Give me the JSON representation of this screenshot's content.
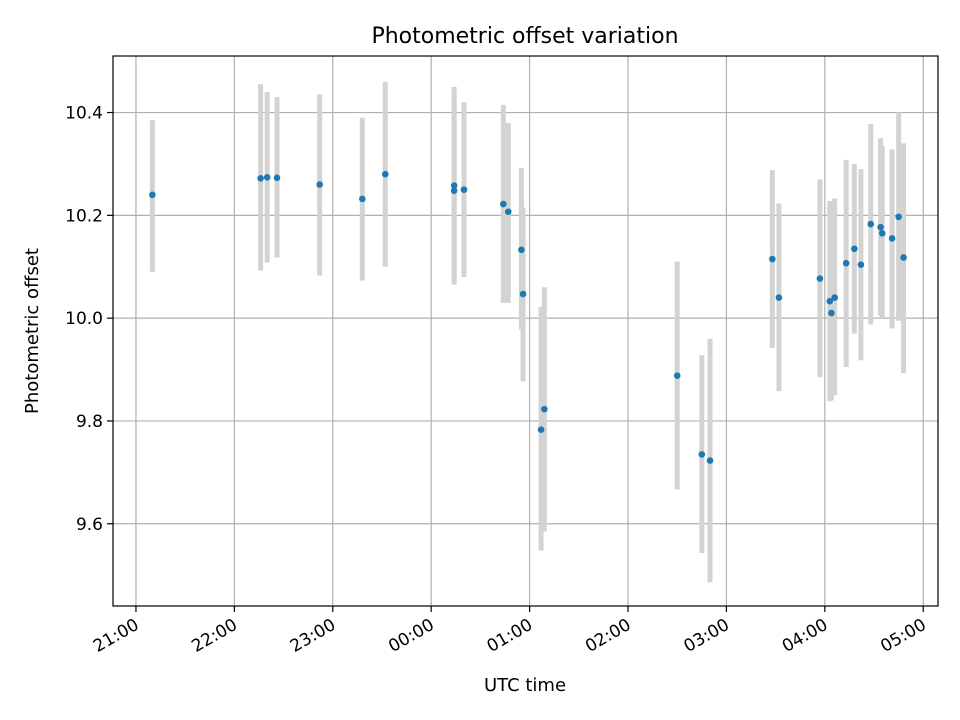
{
  "chart_data": {
    "type": "scatter",
    "title": "Photometric offset variation",
    "xlabel": "UTC time",
    "ylabel": "Photometric offset",
    "x_tick_labels": [
      "21:00",
      "22:00",
      "23:00",
      "00:00",
      "01:00",
      "02:00",
      "03:00",
      "04:00",
      "05:00"
    ],
    "y_ticks": [
      9.6,
      9.8,
      10.0,
      10.2,
      10.4
    ],
    "y_tick_labels": [
      "9.6",
      "9.8",
      "10.0",
      "10.2",
      "10.4"
    ],
    "xlim": [
      "20:46",
      "05:09"
    ],
    "ylim": [
      9.44,
      10.51
    ],
    "grid": true,
    "marker_color": "#1f77b4",
    "errorbar_color": "#d3d3d3",
    "series": [
      {
        "points": [
          {
            "x": "21:10",
            "y": 10.24,
            "err_low": 10.09,
            "err_high": 10.385
          },
          {
            "x": "22:16",
            "y": 10.272,
            "err_low": 10.093,
            "err_high": 10.455
          },
          {
            "x": "22:20",
            "y": 10.274,
            "err_low": 10.108,
            "err_high": 10.44
          },
          {
            "x": "22:26",
            "y": 10.273,
            "err_low": 10.118,
            "err_high": 10.43
          },
          {
            "x": "22:52",
            "y": 10.26,
            "err_low": 10.083,
            "err_high": 10.435
          },
          {
            "x": "23:18",
            "y": 10.232,
            "err_low": 10.073,
            "err_high": 10.39
          },
          {
            "x": "23:32",
            "y": 10.28,
            "err_low": 10.1,
            "err_high": 10.46
          },
          {
            "x": "00:14",
            "y": 10.258,
            "err_low": 10.065,
            "err_high": 10.45
          },
          {
            "x": "00:14",
            "y": 10.248,
            "err_low": 10.08,
            "err_high": 10.42
          },
          {
            "x": "00:20",
            "y": 10.25,
            "err_low": 10.08,
            "err_high": 10.42
          },
          {
            "x": "00:44",
            "y": 10.222,
            "err_low": 10.03,
            "err_high": 10.415
          },
          {
            "x": "00:47",
            "y": 10.207,
            "err_low": 10.03,
            "err_high": 10.38
          },
          {
            "x": "00:55",
            "y": 10.133,
            "err_low": 9.978,
            "err_high": 10.292
          },
          {
            "x": "00:56",
            "y": 10.047,
            "err_low": 9.877,
            "err_high": 10.215
          },
          {
            "x": "01:07",
            "y": 9.783,
            "err_low": 9.548,
            "err_high": 10.022
          },
          {
            "x": "01:09",
            "y": 9.823,
            "err_low": 9.585,
            "err_high": 10.06
          },
          {
            "x": "02:30",
            "y": 9.888,
            "err_low": 9.667,
            "err_high": 10.11
          },
          {
            "x": "02:45",
            "y": 9.735,
            "err_low": 9.543,
            "err_high": 9.928
          },
          {
            "x": "02:50",
            "y": 9.723,
            "err_low": 9.486,
            "err_high": 9.96
          },
          {
            "x": "03:28",
            "y": 10.115,
            "err_low": 9.942,
            "err_high": 10.288
          },
          {
            "x": "03:32",
            "y": 10.04,
            "err_low": 9.858,
            "err_high": 10.223
          },
          {
            "x": "03:57",
            "y": 10.077,
            "err_low": 9.885,
            "err_high": 10.27
          },
          {
            "x": "04:03",
            "y": 10.033,
            "err_low": 9.838,
            "err_high": 10.228
          },
          {
            "x": "04:04",
            "y": 10.01,
            "err_low": 9.84,
            "err_high": 10.228
          },
          {
            "x": "04:06",
            "y": 10.04,
            "err_low": 9.85,
            "err_high": 10.233
          },
          {
            "x": "04:13",
            "y": 10.107,
            "err_low": 9.905,
            "err_high": 10.308
          },
          {
            "x": "04:18",
            "y": 10.135,
            "err_low": 9.97,
            "err_high": 10.3
          },
          {
            "x": "04:22",
            "y": 10.104,
            "err_low": 9.918,
            "err_high": 10.29
          },
          {
            "x": "04:28",
            "y": 10.183,
            "err_low": 9.988,
            "err_high": 10.378
          },
          {
            "x": "04:34",
            "y": 10.177,
            "err_low": 10.005,
            "err_high": 10.35
          },
          {
            "x": "04:35",
            "y": 10.165,
            "err_low": 10.0,
            "err_high": 10.335
          },
          {
            "x": "04:41",
            "y": 10.155,
            "err_low": 9.98,
            "err_high": 10.328
          },
          {
            "x": "04:45",
            "y": 10.197,
            "err_low": 9.995,
            "err_high": 10.4
          },
          {
            "x": "04:48",
            "y": 10.118,
            "err_low": 9.893,
            "err_high": 10.34
          }
        ]
      }
    ]
  }
}
